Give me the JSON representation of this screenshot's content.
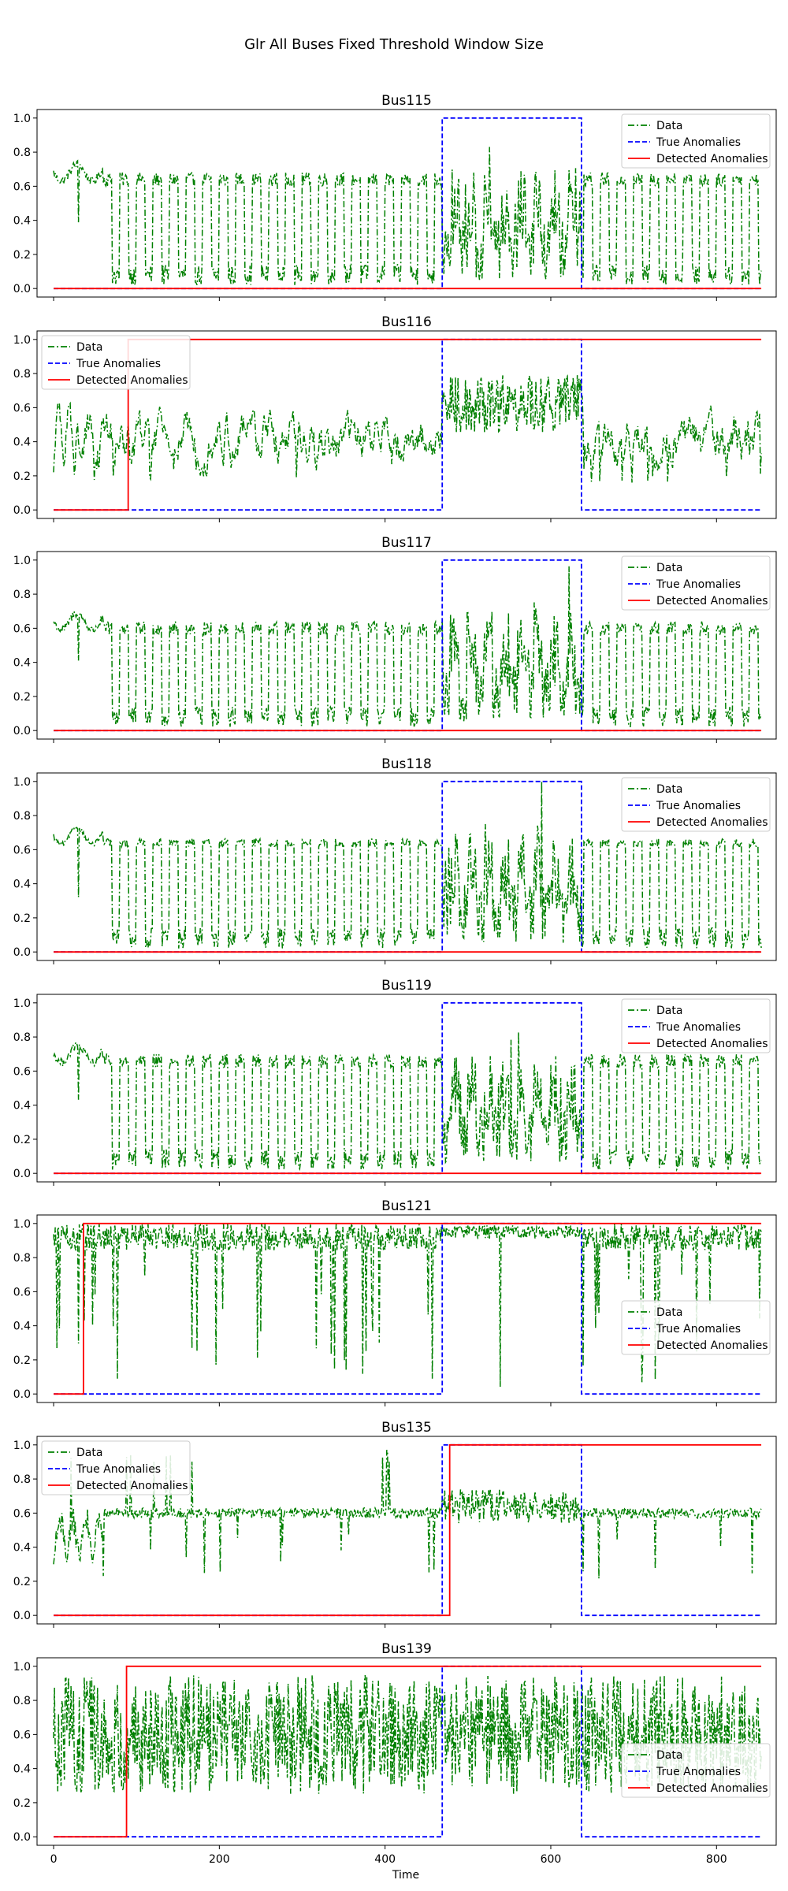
{
  "figure": {
    "title": "Glr All Buses Fixed Threshold Window Size",
    "xlabel": "Time"
  },
  "chart_data": {
    "type": "line",
    "shared_x_axis": true,
    "xlim": [
      -20,
      872
    ],
    "xticks": [
      0,
      200,
      400,
      600,
      800
    ],
    "ylim": [
      -0.05,
      1.05
    ],
    "yticks": [
      0.0,
      0.2,
      0.4,
      0.6,
      0.8,
      1.0
    ],
    "ytick_labels": [
      "0.0",
      "0.2",
      "0.4",
      "0.6",
      "0.8",
      "1.0"
    ],
    "n_points": 855,
    "true_anomaly_window": [
      469,
      637
    ],
    "series_styles": {
      "data": {
        "label": "Data",
        "color": "#008000",
        "dash": "dash-dot"
      },
      "true": {
        "label": "True Anomalies",
        "color": "#0000ff",
        "dash": "dashed"
      },
      "detected": {
        "label": "Detected Anomalies",
        "color": "#ff0000",
        "dash": "solid"
      }
    },
    "panels": [
      {
        "title": "Bus115",
        "profile": "periodic",
        "base": 0.68,
        "noise": 0.05,
        "detected_start": null,
        "legend": "upper-right"
      },
      {
        "title": "Bus116",
        "profile": "noisy",
        "base": 0.42,
        "noise": 0.12,
        "detected_start": 90,
        "legend": "upper-left"
      },
      {
        "title": "Bus117",
        "profile": "periodic",
        "base": 0.64,
        "noise": 0.05,
        "detected_start": null,
        "legend": "upper-right"
      },
      {
        "title": "Bus118",
        "profile": "periodic",
        "base": 0.68,
        "noise": 0.03,
        "detected_start": null,
        "legend": "upper-right"
      },
      {
        "title": "Bus119",
        "profile": "periodic",
        "base": 0.7,
        "noise": 0.05,
        "detected_start": null,
        "legend": "upper-right"
      },
      {
        "title": "Bus121",
        "profile": "high",
        "base": 0.9,
        "noise": 0.1,
        "detected_start": 36,
        "legend": "center-right"
      },
      {
        "title": "Bus135",
        "profile": "flat",
        "base": 0.6,
        "noise": 0.04,
        "detected_start": 478,
        "legend": "upper-left"
      },
      {
        "title": "Bus139",
        "profile": "noisy",
        "base": 0.6,
        "noise": 0.15,
        "detected_start": 88,
        "legend": "center-right"
      }
    ]
  }
}
